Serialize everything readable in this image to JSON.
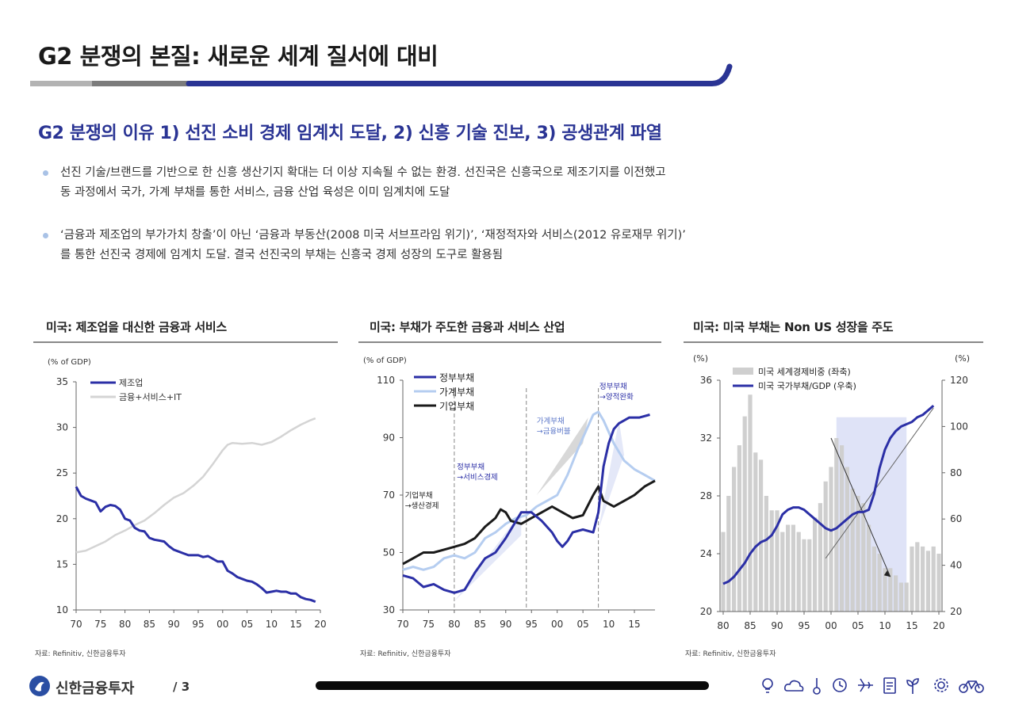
{
  "header": {
    "title": "G2 분쟁의 본질: 새로운 세계 질서에 대비",
    "subtitle": "G2 분쟁의 이유 1) 선진 소비 경제 임계치 도달, 2) 신흥 기술 진보, 3) 공생관계 파열"
  },
  "bullets": [
    {
      "line1": "선진 기술/브랜드를 기반으로 한 신흥 생산기지 확대는 더 이상 지속될 수 없는 환경. 선진국은 신흥국으로 제조기지를 이전했고",
      "line2": "동 과정에서 국가, 가계 부채를 통한 서비스, 금융 산업 육성은 이미 임계치에 도달"
    },
    {
      "line1": "‘금융과 제조업의 부가가치 창출’이 아닌 ‘금융과 부동산(2008 미국 서브프라임 위기)’, ‘재정적자와 서비스(2012 유로재무 위기)’",
      "line2": "를 통한 선진국 경제에 임계치 도달. 결국 선진국의 부채는 신흥국 경제 성장의 도구로 활용됨"
    }
  ],
  "colors": {
    "title_blue": "#2a3494",
    "series_navy": "#2b2fa6",
    "series_light_grey": "#d4d4d4",
    "series_light_blue": "#b5cdf0",
    "series_black": "#1a1a1a",
    "bar_grey": "#cfcfcf",
    "highlight": "#dfe3f7"
  },
  "chart_data": [
    {
      "type": "line",
      "title": "미국: 제조업을 대신한 금융과 서비스",
      "unit_label": "(% of GDP)",
      "source": "자료: Refinitiv, 신한금융투자",
      "ylim": [
        10,
        35
      ],
      "yticks": [
        "10",
        "15",
        "20",
        "25",
        "30",
        "35"
      ],
      "xticks": [
        "70",
        "75",
        "80",
        "85",
        "90",
        "95",
        "00",
        "05",
        "10",
        "15",
        "20"
      ],
      "xlim": [
        1970,
        2020
      ],
      "series": [
        {
          "name": "제조업",
          "color": "#2b2fa6",
          "points": [
            [
              1970,
              23.5
            ],
            [
              1971,
              22.5
            ],
            [
              1972,
              22.2
            ],
            [
              1973,
              22
            ],
            [
              1974,
              21.8
            ],
            [
              1975,
              20.8
            ],
            [
              1976,
              21.3
            ],
            [
              1977,
              21.5
            ],
            [
              1978,
              21.4
            ],
            [
              1979,
              21
            ],
            [
              1980,
              20
            ],
            [
              1981,
              19.8
            ],
            [
              1982,
              19
            ],
            [
              1983,
              18.7
            ],
            [
              1984,
              18.6
            ],
            [
              1985,
              17.9
            ],
            [
              1986,
              17.7
            ],
            [
              1987,
              17.6
            ],
            [
              1988,
              17.5
            ],
            [
              1989,
              17
            ],
            [
              1990,
              16.6
            ],
            [
              1991,
              16.4
            ],
            [
              1992,
              16.2
            ],
            [
              1993,
              16
            ],
            [
              1994,
              16
            ],
            [
              1995,
              16
            ],
            [
              1996,
              15.8
            ],
            [
              1997,
              15.9
            ],
            [
              1998,
              15.6
            ],
            [
              1999,
              15.3
            ],
            [
              2000,
              15.3
            ],
            [
              2001,
              14.3
            ],
            [
              2002,
              14
            ],
            [
              2003,
              13.6
            ],
            [
              2004,
              13.4
            ],
            [
              2005,
              13.2
            ],
            [
              2006,
              13.1
            ],
            [
              2007,
              12.8
            ],
            [
              2008,
              12.4
            ],
            [
              2009,
              11.9
            ],
            [
              2010,
              12
            ],
            [
              2011,
              12.1
            ],
            [
              2012,
              12
            ],
            [
              2013,
              12
            ],
            [
              2014,
              11.8
            ],
            [
              2015,
              11.8
            ],
            [
              2016,
              11.4
            ],
            [
              2017,
              11.2
            ],
            [
              2018,
              11.1
            ],
            [
              2019,
              10.9
            ]
          ]
        },
        {
          "name": "금융+서비스+IT",
          "color": "#d4d4d4",
          "points": [
            [
              1970,
              16.3
            ],
            [
              1972,
              16.5
            ],
            [
              1974,
              17
            ],
            [
              1976,
              17.5
            ],
            [
              1978,
              18.2
            ],
            [
              1980,
              18.7
            ],
            [
              1982,
              19.3
            ],
            [
              1984,
              19.8
            ],
            [
              1986,
              20.6
            ],
            [
              1988,
              21.5
            ],
            [
              1990,
              22.3
            ],
            [
              1992,
              22.8
            ],
            [
              1994,
              23.6
            ],
            [
              1996,
              24.6
            ],
            [
              1998,
              26
            ],
            [
              2000,
              27.5
            ],
            [
              2001,
              28.1
            ],
            [
              2002,
              28.3
            ],
            [
              2004,
              28.2
            ],
            [
              2006,
              28.3
            ],
            [
              2008,
              28.1
            ],
            [
              2010,
              28.4
            ],
            [
              2012,
              29
            ],
            [
              2014,
              29.7
            ],
            [
              2016,
              30.3
            ],
            [
              2018,
              30.8
            ],
            [
              2019,
              31
            ]
          ]
        }
      ]
    },
    {
      "type": "line",
      "title": "미국: 부채가 주도한 금융과 서비스 산업",
      "unit_label": "(% of GDP)",
      "source": "자료: Refinitiv, 신한금융투자",
      "ylim": [
        30,
        110
      ],
      "yticks": [
        "30",
        "50",
        "70",
        "90",
        "110"
      ],
      "xticks": [
        "70",
        "75",
        "80",
        "85",
        "90",
        "95",
        "00",
        "05",
        "10",
        "15"
      ],
      "xlim": [
        1970,
        2019
      ],
      "annotations": [
        "기업부채\n→생산경제",
        "정부부채\n→서비스경제",
        "가계부채\n→금융버블",
        "정부부채\n→양적완화"
      ],
      "series": [
        {
          "name": "정부부채",
          "color": "#2b2fa6",
          "points": [
            [
              1970,
              42
            ],
            [
              1972,
              41
            ],
            [
              1974,
              38
            ],
            [
              1976,
              39
            ],
            [
              1978,
              37
            ],
            [
              1980,
              36
            ],
            [
              1982,
              37
            ],
            [
              1984,
              43
            ],
            [
              1986,
              48
            ],
            [
              1988,
              50
            ],
            [
              1990,
              55
            ],
            [
              1992,
              61
            ],
            [
              1993,
              64
            ],
            [
              1995,
              64
            ],
            [
              1997,
              61
            ],
            [
              1999,
              57
            ],
            [
              2000,
              54
            ],
            [
              2001,
              52
            ],
            [
              2002,
              54
            ],
            [
              2003,
              57
            ],
            [
              2005,
              58
            ],
            [
              2007,
              57
            ],
            [
              2008,
              64
            ],
            [
              2009,
              80
            ],
            [
              2010,
              88
            ],
            [
              2011,
              93
            ],
            [
              2012,
              95
            ],
            [
              2014,
              97
            ],
            [
              2016,
              97
            ],
            [
              2018,
              98
            ]
          ]
        },
        {
          "name": "가계부채",
          "color": "#b5cdf0",
          "points": [
            [
              1970,
              44
            ],
            [
              1972,
              45
            ],
            [
              1974,
              44
            ],
            [
              1976,
              45
            ],
            [
              1978,
              48
            ],
            [
              1980,
              49
            ],
            [
              1982,
              48
            ],
            [
              1984,
              50
            ],
            [
              1986,
              55
            ],
            [
              1988,
              57
            ],
            [
              1990,
              60
            ],
            [
              1992,
              62
            ],
            [
              1994,
              63
            ],
            [
              1996,
              66
            ],
            [
              1998,
              68
            ],
            [
              2000,
              70
            ],
            [
              2002,
              77
            ],
            [
              2004,
              86
            ],
            [
              2006,
              94
            ],
            [
              2007,
              98
            ],
            [
              2008,
              99
            ],
            [
              2009,
              96
            ],
            [
              2011,
              88
            ],
            [
              2013,
              82
            ],
            [
              2015,
              79
            ],
            [
              2017,
              77
            ],
            [
              2019,
              75
            ]
          ]
        },
        {
          "name": "기업부채",
          "color": "#1a1a1a",
          "points": [
            [
              1970,
              46
            ],
            [
              1972,
              48
            ],
            [
              1974,
              50
            ],
            [
              1976,
              50
            ],
            [
              1978,
              51
            ],
            [
              1980,
              52
            ],
            [
              1982,
              53
            ],
            [
              1984,
              55
            ],
            [
              1986,
              59
            ],
            [
              1988,
              62
            ],
            [
              1989,
              65
            ],
            [
              1990,
              64
            ],
            [
              1991,
              61
            ],
            [
              1993,
              60
            ],
            [
              1995,
              62
            ],
            [
              1997,
              64
            ],
            [
              1999,
              66
            ],
            [
              2001,
              64
            ],
            [
              2003,
              62
            ],
            [
              2005,
              63
            ],
            [
              2007,
              70
            ],
            [
              2008,
              73
            ],
            [
              2009,
              68
            ],
            [
              2011,
              66
            ],
            [
              2013,
              68
            ],
            [
              2015,
              70
            ],
            [
              2017,
              73
            ],
            [
              2019,
              75
            ]
          ]
        }
      ]
    },
    {
      "type": "bar",
      "title": "미국: 미국 부채는 Non US 성장을 주도",
      "unit_left": "(%)",
      "unit_right": "(%)",
      "source": "자료: Refinitiv, 신한금융투자",
      "ylim_left": [
        20,
        36
      ],
      "yticks_left": [
        "20",
        "24",
        "28",
        "32",
        "36"
      ],
      "ylim_right": [
        20,
        120
      ],
      "yticks_right": [
        "20",
        "40",
        "60",
        "80",
        "100",
        "120"
      ],
      "xticks": [
        "80",
        "85",
        "90",
        "95",
        "00",
        "05",
        "10",
        "15",
        "20"
      ],
      "xlim": [
        1980,
        2020
      ],
      "series": [
        {
          "name": "미국 세계경제비중 (좌축)",
          "color": "#cfcfcf",
          "axis": "left",
          "x": [
            1980,
            1981,
            1982,
            1983,
            1984,
            1985,
            1986,
            1987,
            1988,
            1989,
            1990,
            1991,
            1992,
            1993,
            1994,
            1995,
            1996,
            1997,
            1998,
            1999,
            2000,
            2001,
            2002,
            2003,
            2004,
            2005,
            2006,
            2007,
            2008,
            2009,
            2010,
            2011,
            2012,
            2013,
            2014,
            2015,
            2016,
            2017,
            2018,
            2019,
            2020
          ],
          "values": [
            25.5,
            28,
            30,
            31.5,
            33.5,
            35,
            31,
            30.5,
            28,
            27,
            27,
            25.5,
            26,
            26,
            25.5,
            25,
            25,
            26.5,
            27.5,
            29,
            30,
            32,
            31.5,
            30,
            28.5,
            28,
            27.5,
            26,
            24.5,
            24,
            23,
            23,
            22.5,
            22,
            22,
            24.5,
            24.8,
            24.5,
            24.2,
            24.5,
            24
          ]
        },
        {
          "name": "미국 국가부채/GDP (우축)",
          "color": "#2b2fa6",
          "axis": "right",
          "x": [
            1980,
            1981,
            1982,
            1983,
            1984,
            1985,
            1986,
            1987,
            1988,
            1989,
            1990,
            1991,
            1992,
            1993,
            1994,
            1995,
            1996,
            1997,
            1998,
            1999,
            2000,
            2001,
            2002,
            2003,
            2004,
            2005,
            2006,
            2007,
            2008,
            2009,
            2010,
            2011,
            2012,
            2013,
            2014,
            2015,
            2016,
            2017,
            2018,
            2019
          ],
          "values": [
            32,
            33,
            35,
            38,
            41,
            45,
            48,
            50,
            51,
            53,
            57,
            62,
            64,
            65,
            65,
            64,
            62,
            60,
            58,
            56,
            55,
            56,
            58,
            60,
            62,
            63,
            63,
            64,
            71,
            82,
            90,
            95,
            98,
            100,
            101,
            102,
            104,
            105,
            107,
            109
          ]
        }
      ]
    }
  ],
  "footer": {
    "brand": "신한금융투자",
    "page": "/ 3",
    "icons": [
      "lightbulb-icon",
      "cloud-icon",
      "thermometer-icon",
      "clock-icon",
      "airplane-icon",
      "document-icon",
      "plant-icon",
      "gear-icon",
      "bicycle-icon"
    ]
  }
}
